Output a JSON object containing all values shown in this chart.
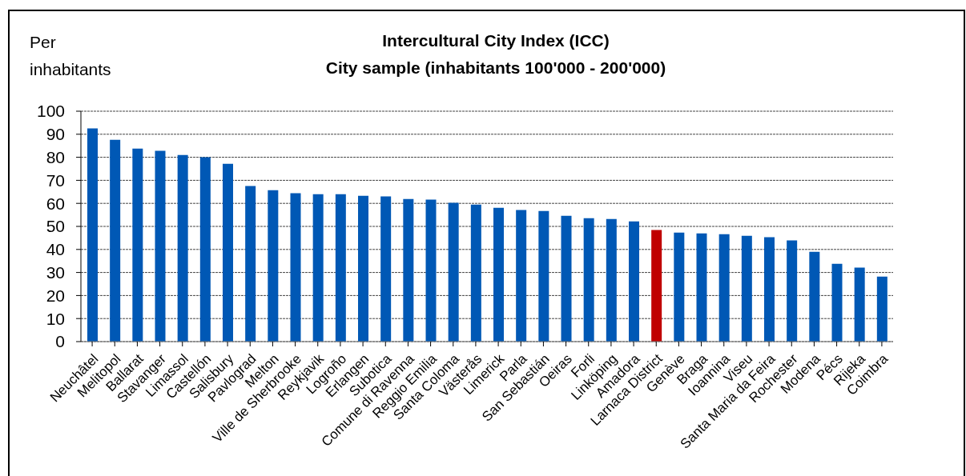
{
  "chart_data": {
    "type": "bar",
    "title": "Intercultural City Index (ICC)",
    "subtitle": "City sample (inhabitants 100'000 - 200'000)",
    "ylabel": "Per inhabitants",
    "categories": [
      "Neuchâtel",
      "Melitopol",
      "Ballarat",
      "Stavanger",
      "Limassol",
      "Castellón",
      "Salisbury",
      "Pavlograd",
      "Melton",
      "Ville de Sherbrooke",
      "Reykjavik",
      "Logroño",
      "Erlangen",
      "Subotica",
      "Comune di Ravenna",
      "Reggio Emilia",
      "Santa Coloma",
      "Västerås",
      "Limerick",
      "Parla",
      "San Sebastián",
      "Oeiras",
      "Forli",
      "Linköping",
      "Amadora",
      "Larnaca District",
      "Genève",
      "Braga",
      "Ioannina",
      "Viseu",
      "Santa Maria da Feira",
      "Rochester",
      "Modena",
      "Pécs",
      "Rijeka",
      "Coimbra"
    ],
    "values": [
      92.5,
      87.6,
      83.8,
      82.8,
      81.0,
      80.0,
      77.2,
      67.5,
      65.7,
      64.4,
      64.0,
      64.0,
      63.3,
      63.0,
      61.9,
      61.6,
      60.2,
      59.5,
      58.1,
      57.1,
      56.7,
      54.6,
      53.6,
      53.2,
      52.2,
      48.4,
      47.3,
      47.0,
      46.6,
      45.9,
      45.3,
      43.9,
      39.0,
      33.8,
      32.1,
      28.2
    ],
    "colors": [
      "#0058b5",
      "#0058b5",
      "#0058b5",
      "#0058b5",
      "#0058b5",
      "#0058b5",
      "#0058b5",
      "#0058b5",
      "#0058b5",
      "#0058b5",
      "#0058b5",
      "#0058b5",
      "#0058b5",
      "#0058b5",
      "#0058b5",
      "#0058b5",
      "#0058b5",
      "#0058b5",
      "#0058b5",
      "#0058b5",
      "#0058b5",
      "#0058b5",
      "#0058b5",
      "#0058b5",
      "#0058b5",
      "#c00000",
      "#0058b5",
      "#0058b5",
      "#0058b5",
      "#0058b5",
      "#0058b5",
      "#0058b5",
      "#0058b5",
      "#0058b5",
      "#0058b5",
      "#0058b5"
    ],
    "ylim": [
      0,
      100
    ],
    "yticks": [
      0,
      10,
      20,
      30,
      40,
      50,
      60,
      70,
      80,
      90,
      100
    ],
    "grid": "y",
    "legend": false
  }
}
